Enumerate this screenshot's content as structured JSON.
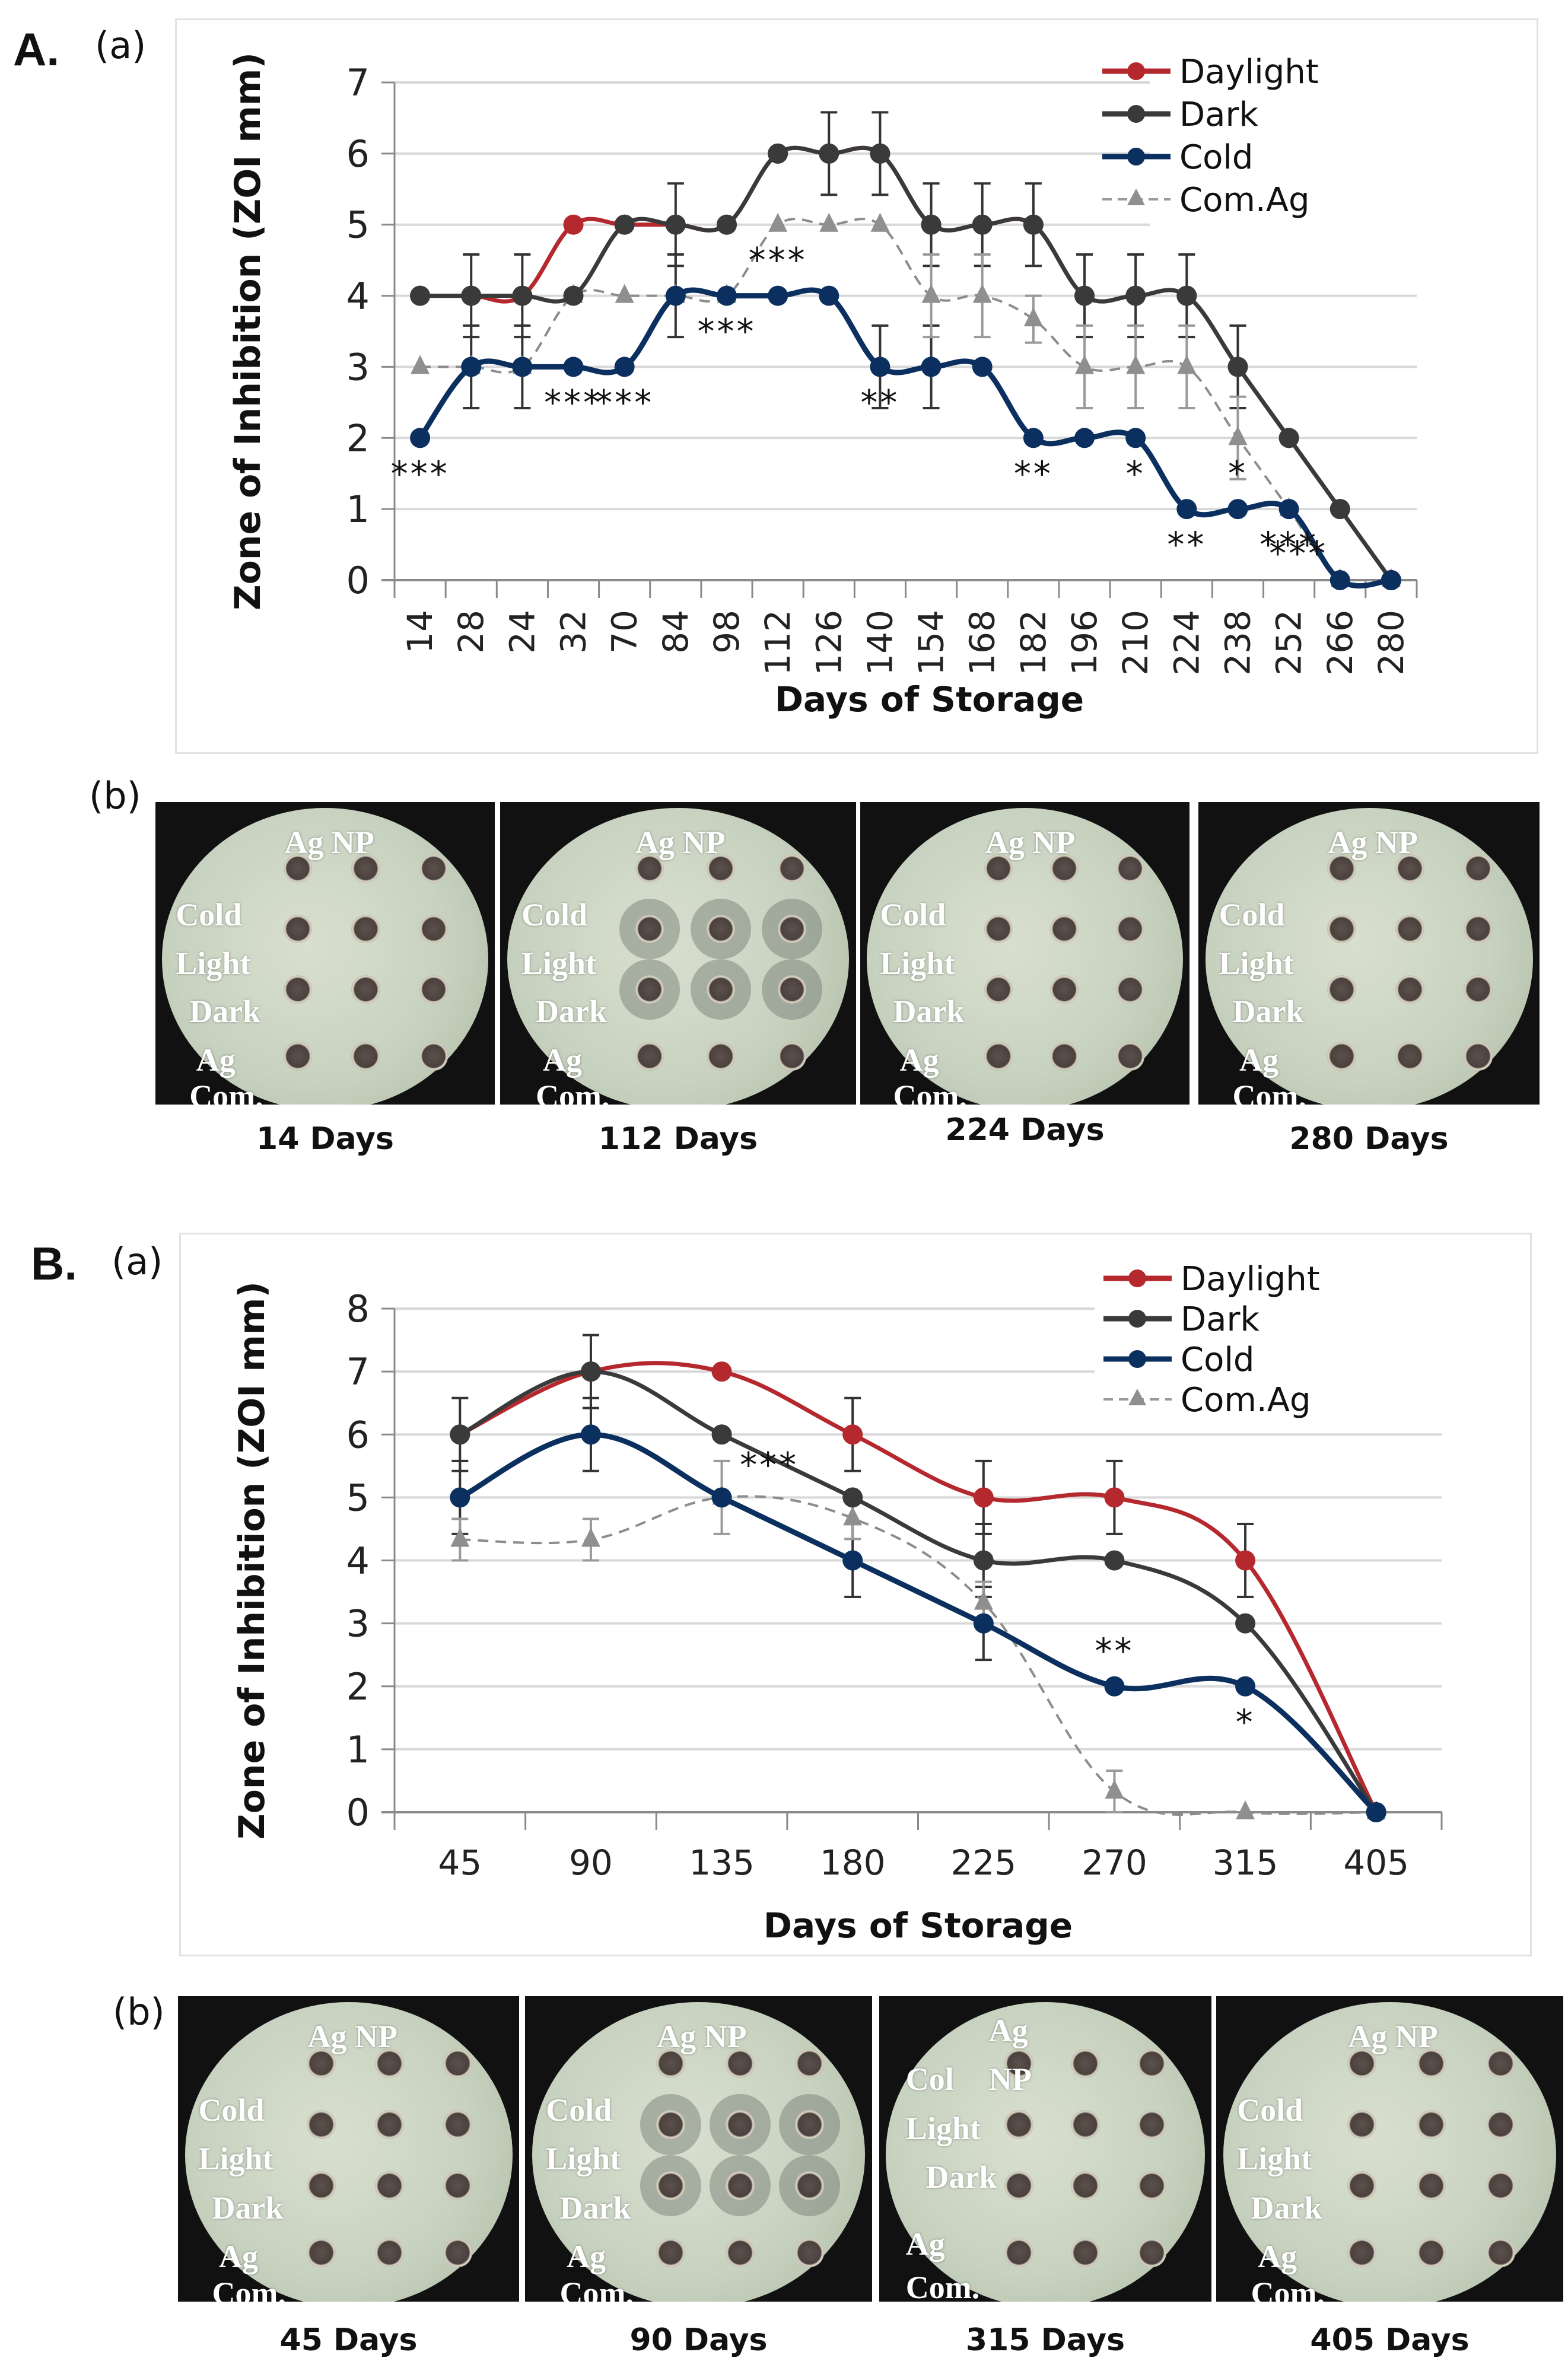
{
  "panels": [
    {
      "id": "A",
      "label": "A.",
      "chart_sublabel": "(a)",
      "photos_sublabel": "(b)",
      "photos": [
        {
          "caption": "14 Days",
          "labels": [
            "Ag NP",
            "Cold",
            "Light",
            "Dark",
            "Ag",
            "Com."
          ]
        },
        {
          "caption": "112 Days",
          "labels": [
            "Ag NP",
            "Cold",
            "Light",
            "Dark",
            "Ag",
            "Com."
          ]
        },
        {
          "caption": "224 Days",
          "labels": [
            "Ag NP",
            "Cold",
            "Light",
            "Dark",
            "Ag",
            "Com."
          ]
        },
        {
          "caption": "280 Days",
          "labels": [
            "Ag NP",
            "Cold",
            "Light",
            "Dark",
            "Ag",
            "Com."
          ]
        }
      ]
    },
    {
      "id": "B",
      "label": "B.",
      "chart_sublabel": "(a)",
      "photos_sublabel": "(b)",
      "photos": [
        {
          "caption": "45 Days",
          "labels": [
            "Ag NP",
            "Cold",
            "Light",
            "Dark",
            "Ag",
            "Com."
          ]
        },
        {
          "caption": "90 Days",
          "labels": [
            "Ag NP",
            "Cold",
            "Light",
            "Dark",
            "Ag",
            "Com."
          ]
        },
        {
          "caption": "315 Days",
          "labels": [
            "Ag",
            "NP",
            "Col",
            "Light",
            "Dark",
            "Ag",
            "Com."
          ]
        },
        {
          "caption": "405 Days",
          "labels": [
            "Ag NP",
            "Cold",
            "Light",
            "Dark",
            "Ag",
            "Com."
          ]
        }
      ]
    }
  ],
  "colors": {
    "daylight": "#b5282e",
    "dark": "#3a3a3a",
    "cold": "#0b305f",
    "com_ag": "#8c8c8c",
    "gridline": "#d9d9d9",
    "axis": "#8a8a8a"
  },
  "chart_data": [
    {
      "type": "line",
      "panel": "A",
      "title": "",
      "xlabel": "Days of Storage",
      "ylabel": "Zone of Inhibition (ZOI mm)",
      "ylim": [
        0,
        7
      ],
      "yticks": [
        0,
        1,
        2,
        3,
        4,
        5,
        6,
        7
      ],
      "grid": true,
      "legend_position": "top-right",
      "categories": [
        "14",
        "28",
        "24",
        "32",
        "70",
        "84",
        "98",
        "112",
        "126",
        "140",
        "154",
        "168",
        "182",
        "196",
        "210",
        "224",
        "238",
        "252",
        "266",
        "280"
      ],
      "series": [
        {
          "name": "Daylight",
          "style": "solid",
          "marker": "circle",
          "values": [
            4,
            4,
            4,
            5,
            5,
            5,
            5,
            6,
            6,
            6,
            5,
            5,
            5,
            4,
            4,
            4,
            3,
            2,
            1,
            0
          ]
        },
        {
          "name": "Dark",
          "style": "solid",
          "marker": "circle",
          "values": [
            4,
            4,
            4,
            4,
            5,
            5,
            5,
            6,
            6,
            6,
            5,
            5,
            5,
            4,
            4,
            4,
            3,
            2,
            1,
            0
          ]
        },
        {
          "name": "Cold",
          "style": "solid",
          "marker": "circle",
          "values": [
            2,
            3,
            3,
            3,
            3,
            4,
            4,
            4,
            4,
            3,
            3,
            3,
            2,
            2,
            2,
            1,
            1,
            1,
            0,
            0
          ]
        },
        {
          "name": "Com.Ag",
          "style": "dashed",
          "marker": "triangle",
          "values": [
            3,
            3,
            3,
            4,
            4,
            4,
            4,
            5,
            5,
            5,
            4,
            4,
            3.67,
            3,
            3,
            3,
            2,
            1,
            0,
            0
          ]
        }
      ],
      "error_bars": {
        "dark": {
          "28": 0.58,
          "24": 0.58,
          "84": 0.58,
          "126": 0.58,
          "140": 0.58,
          "154": 0.58,
          "168": 0.58,
          "182": 0.58,
          "196": 0.58,
          "210": 0.58,
          "224": 0.58,
          "238": 0.58
        },
        "cold": {
          "28": 0.58,
          "24": 0.58,
          "84": 0.58,
          "140": 0.58,
          "154": 0.58
        },
        "com_ag": {
          "154": 0.58,
          "168": 0.58,
          "182": 0.33,
          "196": 0.58,
          "210": 0.58,
          "224": 0.58,
          "238": 0.58
        }
      },
      "annotations": [
        {
          "x": "14",
          "y": 2,
          "text": "***",
          "pos": "below"
        },
        {
          "x": "32",
          "y": 3,
          "text": "***",
          "pos": "below"
        },
        {
          "x": "70",
          "y": 3,
          "text": "***",
          "pos": "below"
        },
        {
          "x": "98",
          "y": 4,
          "text": "***",
          "pos": "below"
        },
        {
          "x": "112",
          "y": 4,
          "text": "***",
          "pos": "above"
        },
        {
          "x": "140",
          "y": 3,
          "text": "**",
          "pos": "below"
        },
        {
          "x": "182",
          "y": 2,
          "text": "**",
          "pos": "below"
        },
        {
          "x": "210",
          "y": 2,
          "text": "*",
          "pos": "below"
        },
        {
          "x": "224",
          "y": 1,
          "text": "**",
          "pos": "below"
        },
        {
          "x": "238",
          "y": 1,
          "text": "*",
          "pos": "above"
        },
        {
          "x": "252",
          "y": 1,
          "text": "***",
          "pos": "below"
        },
        {
          "x": "266",
          "y": 0,
          "text": "***",
          "pos": "above-left"
        }
      ],
      "legend": [
        "Daylight",
        "Dark",
        "Cold",
        "Com.Ag"
      ]
    },
    {
      "type": "line",
      "panel": "B",
      "title": "",
      "xlabel": "Days of Storage",
      "ylabel": "Zone of Inhibition (ZOI mm)",
      "ylim": [
        0,
        8
      ],
      "yticks": [
        0,
        1,
        2,
        3,
        4,
        5,
        6,
        7,
        8
      ],
      "grid": true,
      "legend_position": "top-right",
      "categories": [
        "45",
        "90",
        "135",
        "180",
        "225",
        "270",
        "315",
        "405"
      ],
      "series": [
        {
          "name": "Daylight",
          "style": "solid",
          "marker": "circle",
          "values": [
            6,
            7,
            7,
            6,
            5,
            5,
            4,
            0
          ]
        },
        {
          "name": "Dark",
          "style": "solid",
          "marker": "circle",
          "values": [
            6,
            7,
            6,
            5,
            4,
            4,
            3,
            0
          ]
        },
        {
          "name": "Cold",
          "style": "solid",
          "marker": "circle",
          "values": [
            5,
            6,
            5,
            4,
            3,
            2,
            2,
            0
          ]
        },
        {
          "name": "Com.Ag",
          "style": "dashed",
          "marker": "triangle",
          "values": [
            4.33,
            4.33,
            5,
            4.67,
            3.33,
            0.33,
            0,
            0
          ]
        }
      ],
      "error_bars": {
        "daylight": {
          "180": 0.58,
          "225": 0.58,
          "270": 0.58,
          "315": 0.58
        },
        "dark": {
          "45": 0.58,
          "90": 0.58,
          "225": 0.58
        },
        "cold": {
          "45": 0.58,
          "90": 0.58,
          "180": 0.58,
          "225": 0.58
        },
        "com_ag": {
          "45": 0.33,
          "90": 0.33,
          "135": 0.58,
          "180": 0.33,
          "225": 0.33,
          "270": 0.33
        }
      },
      "annotations": [
        {
          "x": "135",
          "y": 5,
          "text": "***",
          "pos": "above-right"
        },
        {
          "x": "270",
          "y": 2,
          "text": "**",
          "pos": "above"
        },
        {
          "x": "315",
          "y": 2,
          "text": "*",
          "pos": "below"
        }
      ],
      "legend": [
        "Daylight",
        "Dark",
        "Cold",
        "Com.Ag"
      ]
    }
  ]
}
